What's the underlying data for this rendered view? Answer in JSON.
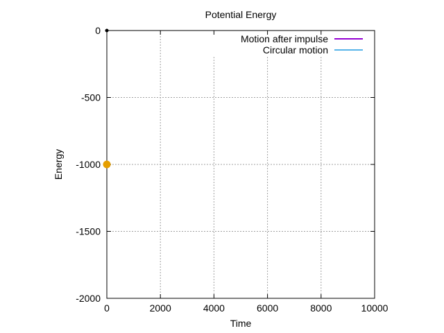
{
  "chart_data": {
    "type": "line",
    "title": "Potential Energy",
    "xlabel": "Time",
    "ylabel": "Energy",
    "xlim": [
      0,
      10000
    ],
    "ylim": [
      -2000,
      0
    ],
    "xticks": [
      0,
      2000,
      4000,
      6000,
      8000,
      10000
    ],
    "yticks": [
      0,
      -500,
      -1000,
      -1500,
      -2000
    ],
    "grid": true,
    "legend_position": "top-right",
    "series": [
      {
        "name": "Motion after impulse",
        "color": "#9400d3",
        "points": [
          {
            "x": 0,
            "y": 0
          }
        ]
      },
      {
        "name": "Circular motion",
        "color": "#56b4e9",
        "points": []
      }
    ],
    "markers": [
      {
        "x": 0,
        "y": 0,
        "color": "#000000",
        "size": "small"
      },
      {
        "x": 0,
        "y": -1000,
        "color": "#e69f00",
        "size": "large"
      }
    ]
  }
}
